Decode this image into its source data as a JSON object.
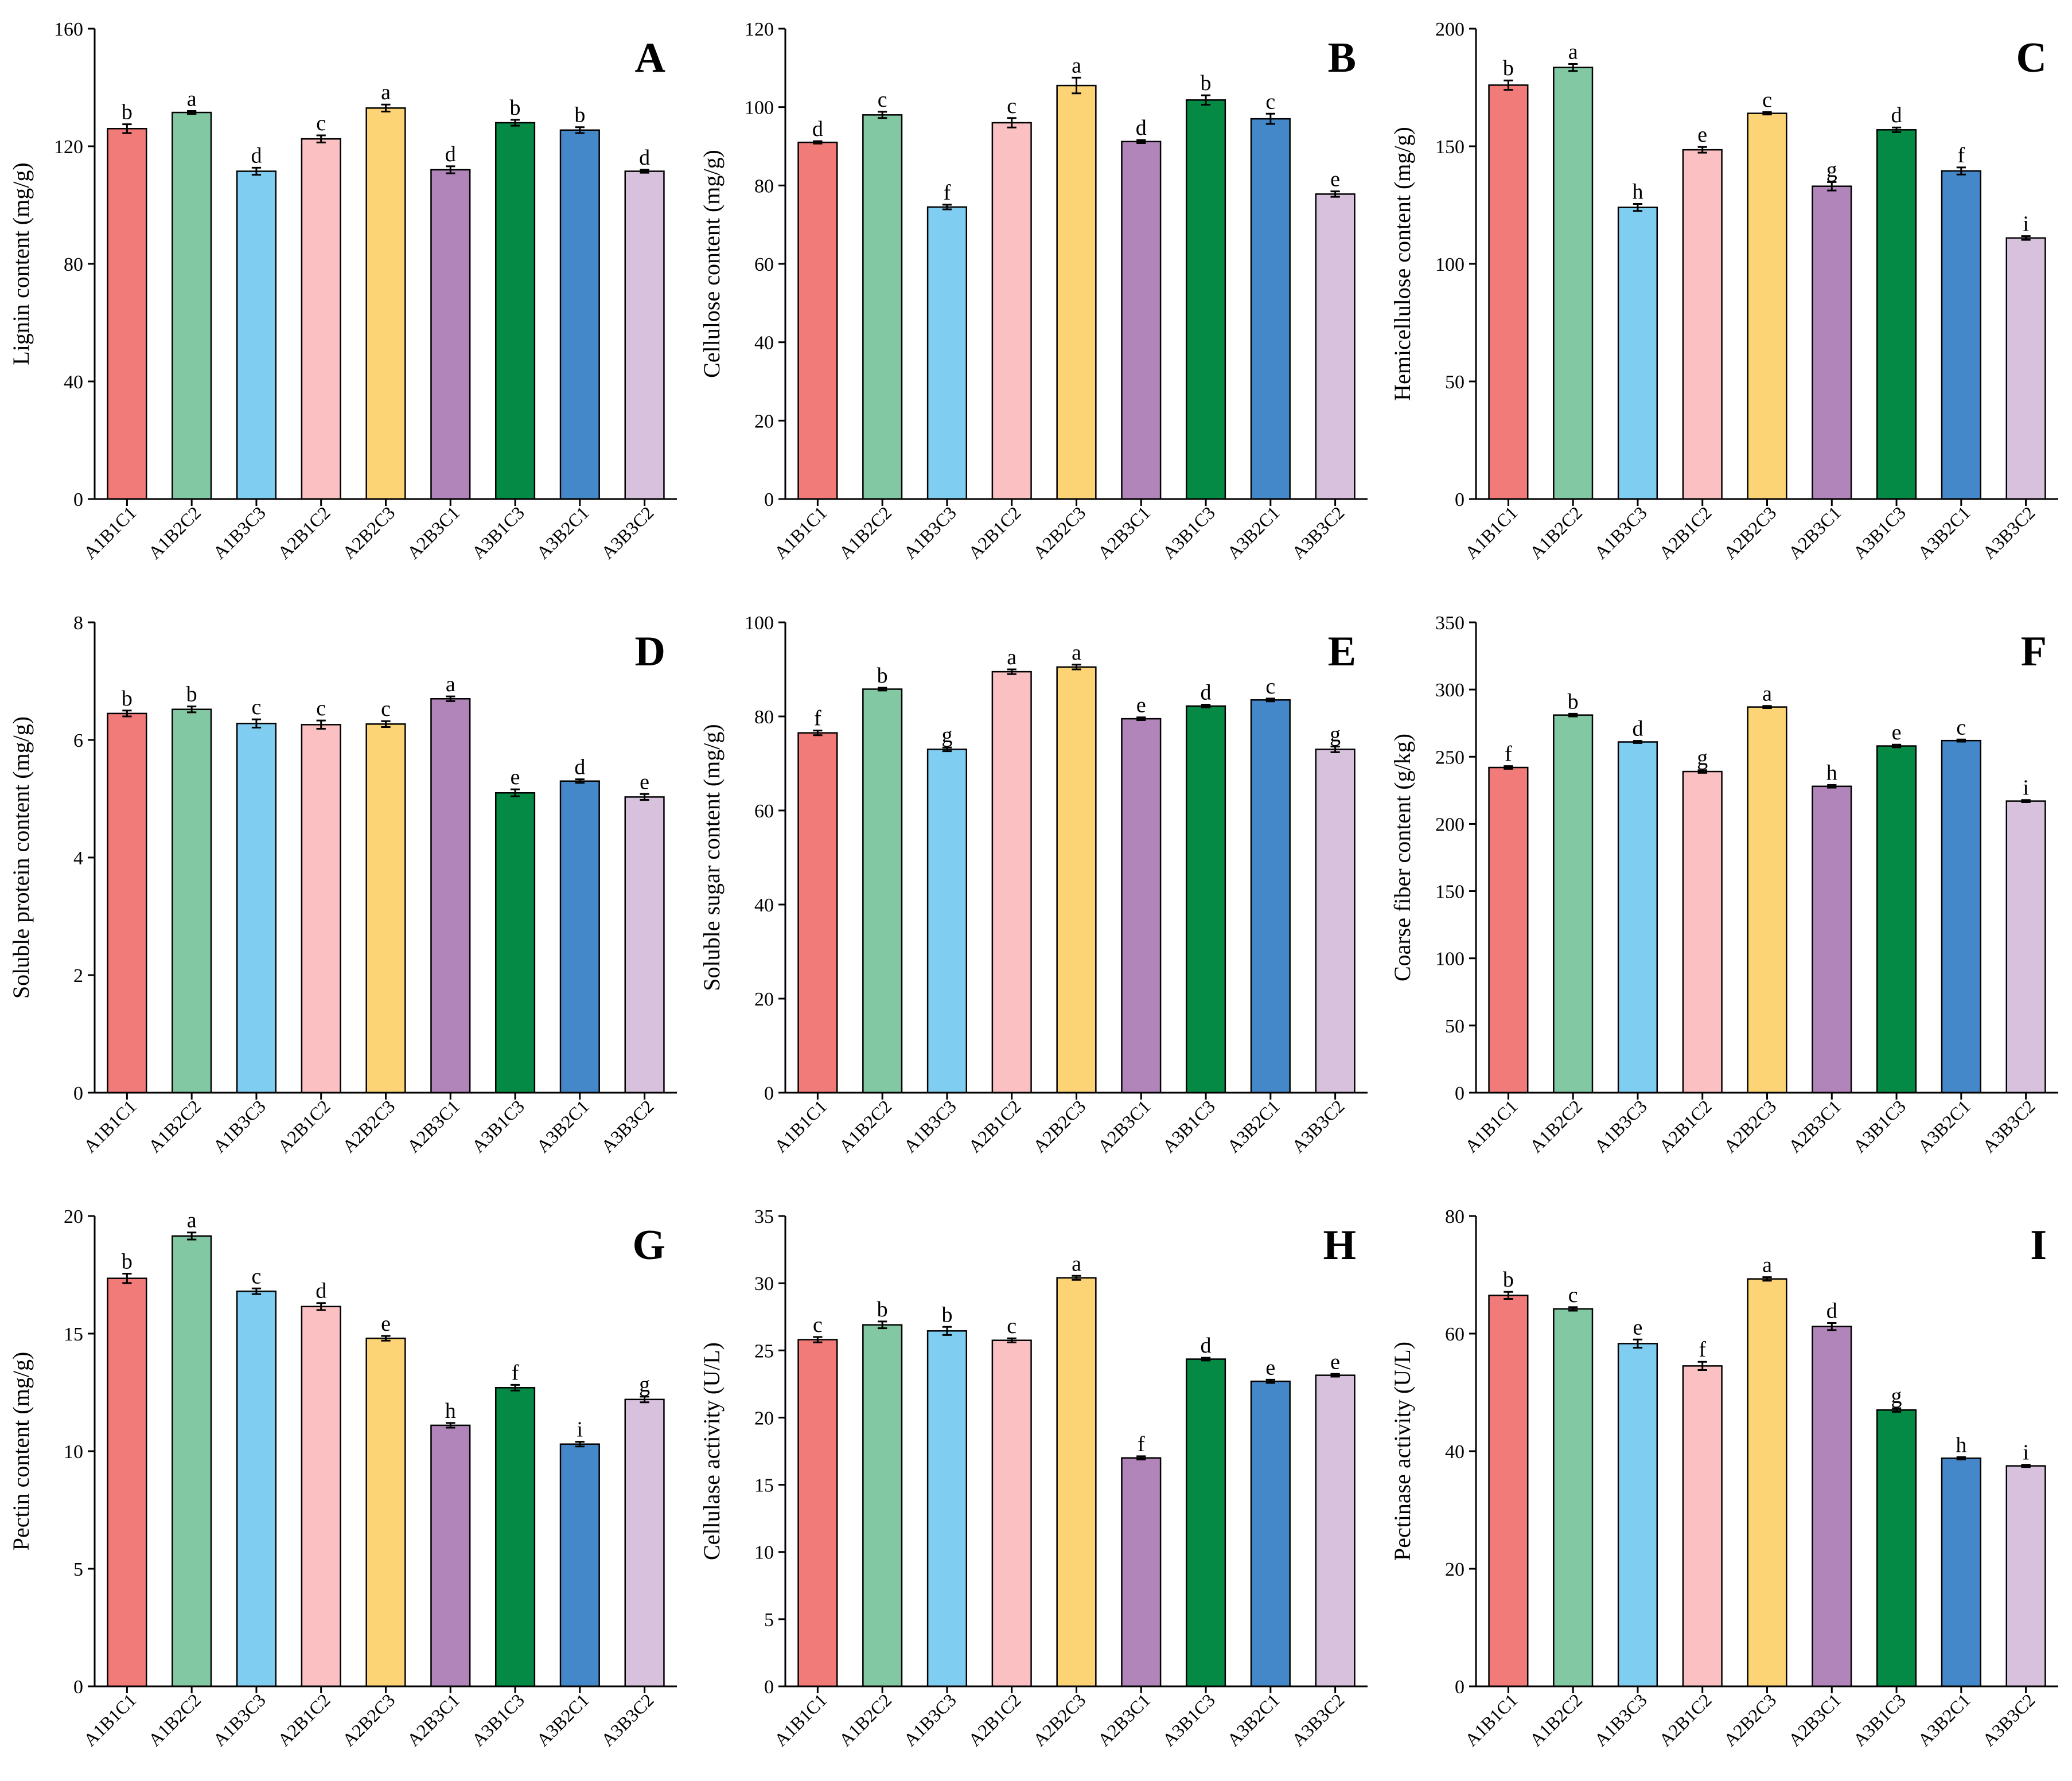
{
  "chart_data": [
    {
      "type": "bar",
      "panel": "A",
      "title": "",
      "xlabel": "",
      "ylabel": "Lignin content (mg/g)",
      "ylim": [
        0,
        160
      ],
      "yticks": [
        0,
        40,
        80,
        120,
        160
      ],
      "grid": false,
      "categories": [
        "A1B1C1",
        "A1B2C2",
        "A1B3C3",
        "A2B1C2",
        "A2B2C3",
        "A2B3C1",
        "A3B1C3",
        "A3B2C1",
        "A3B3C2"
      ],
      "values": [
        126,
        131.5,
        111.5,
        122.5,
        133,
        112,
        128,
        125.5,
        111.5
      ],
      "errors": [
        1.5,
        0.5,
        1.2,
        1.2,
        1.2,
        1.2,
        1.0,
        1.0,
        0.5
      ],
      "significance": [
        "b",
        "a",
        "d",
        "c",
        "a",
        "d",
        "b",
        "b",
        "d"
      ]
    },
    {
      "type": "bar",
      "panel": "B",
      "title": "",
      "xlabel": "",
      "ylabel": "Cellulose content (mg/g)",
      "ylim": [
        0,
        120
      ],
      "yticks": [
        0,
        20,
        40,
        60,
        80,
        100,
        120
      ],
      "grid": false,
      "categories": [
        "A1B1C1",
        "A1B2C2",
        "A1B3C3",
        "A2B1C2",
        "A2B2C3",
        "A2B3C1",
        "A3B1C3",
        "A3B2C1",
        "A3B3C2"
      ],
      "values": [
        91,
        98,
        74.5,
        96,
        105.5,
        91.2,
        101.8,
        97,
        77.8
      ],
      "errors": [
        0.3,
        0.8,
        0.6,
        1.2,
        2.0,
        0.4,
        1.2,
        1.3,
        0.7
      ],
      "significance": [
        "d",
        "c",
        "f",
        "c",
        "a",
        "d",
        "b",
        "c",
        "e"
      ]
    },
    {
      "type": "bar",
      "panel": "C",
      "title": "",
      "xlabel": "",
      "ylabel": "Hemicellulose content (mg/g)",
      "ylim": [
        0,
        200
      ],
      "yticks": [
        0,
        50,
        100,
        150,
        200
      ],
      "grid": false,
      "categories": [
        "A1B1C1",
        "A1B2C2",
        "A1B3C3",
        "A2B1C2",
        "A2B2C3",
        "A2B3C1",
        "A3B1C3",
        "A3B2C1",
        "A3B3C2"
      ],
      "values": [
        176,
        183.5,
        124,
        148.5,
        164,
        133,
        157,
        139.5,
        111
      ],
      "errors": [
        2.0,
        1.5,
        1.5,
        1.2,
        0.5,
        1.8,
        1.0,
        1.5,
        0.8
      ],
      "significance": [
        "b",
        "a",
        "h",
        "e",
        "c",
        "g",
        "d",
        "f",
        "i"
      ]
    },
    {
      "type": "bar",
      "panel": "D",
      "title": "",
      "xlabel": "",
      "ylabel": "Soluble protein content (mg/g)",
      "ylim": [
        0,
        8
      ],
      "yticks": [
        0,
        2,
        4,
        6,
        8
      ],
      "grid": false,
      "categories": [
        "A1B1C1",
        "A1B2C2",
        "A1B3C3",
        "A2B1C2",
        "A2B2C3",
        "A2B3C1",
        "A3B1C3",
        "A3B2C1",
        "A3B3C2"
      ],
      "values": [
        6.45,
        6.52,
        6.28,
        6.26,
        6.27,
        6.7,
        5.1,
        5.3,
        5.03
      ],
      "errors": [
        0.05,
        0.05,
        0.07,
        0.07,
        0.05,
        0.04,
        0.06,
        0.03,
        0.05
      ],
      "significance": [
        "b",
        "b",
        "c",
        "c",
        "c",
        "a",
        "e",
        "d",
        "e"
      ]
    },
    {
      "type": "bar",
      "panel": "E",
      "title": "",
      "xlabel": "",
      "ylabel": "Soluble sugar content (mg/g)",
      "ylim": [
        0,
        100
      ],
      "yticks": [
        0,
        20,
        40,
        60,
        80,
        100
      ],
      "grid": false,
      "categories": [
        "A1B1C1",
        "A1B2C2",
        "A1B3C3",
        "A2B1C2",
        "A2B2C3",
        "A2B3C1",
        "A3B1C3",
        "A3B2C1",
        "A3B3C2"
      ],
      "values": [
        76.5,
        85.8,
        73,
        89.5,
        90.5,
        79.5,
        82.2,
        83.5,
        73
      ],
      "errors": [
        0.5,
        0.3,
        0.4,
        0.5,
        0.5,
        0.3,
        0.3,
        0.3,
        0.6
      ],
      "significance": [
        "f",
        "b",
        "g",
        "a",
        "a",
        "e",
        "d",
        "c",
        "g"
      ]
    },
    {
      "type": "bar",
      "panel": "F",
      "title": "",
      "xlabel": "",
      "ylabel": "Coarse fiber content (g/kg)",
      "ylim": [
        0,
        350
      ],
      "yticks": [
        0,
        50,
        100,
        150,
        200,
        250,
        300,
        350
      ],
      "grid": false,
      "categories": [
        "A1B1C1",
        "A1B2C2",
        "A1B3C3",
        "A2B1C2",
        "A2B2C3",
        "A2B3C1",
        "A3B1C3",
        "A3B2C1",
        "A3B3C2"
      ],
      "values": [
        242,
        281,
        261,
        239,
        287,
        228,
        258,
        262,
        217
      ],
      "errors": [
        1.0,
        1.0,
        0.8,
        1.0,
        0.8,
        1.0,
        1.0,
        0.8,
        0.8
      ],
      "significance": [
        "f",
        "b",
        "d",
        "g",
        "a",
        "h",
        "e",
        "c",
        "i"
      ]
    },
    {
      "type": "bar",
      "panel": "G",
      "title": "",
      "xlabel": "",
      "ylabel": "Pectin content (mg/g)",
      "ylim": [
        0,
        20
      ],
      "yticks": [
        0,
        5,
        10,
        15,
        20
      ],
      "grid": false,
      "categories": [
        "A1B1C1",
        "A1B2C2",
        "A1B3C3",
        "A2B1C2",
        "A2B2C3",
        "A2B3C1",
        "A3B1C3",
        "A3B2C1",
        "A3B3C2"
      ],
      "values": [
        17.35,
        19.15,
        16.8,
        16.15,
        14.8,
        11.1,
        12.7,
        10.3,
        12.2
      ],
      "errors": [
        0.2,
        0.15,
        0.12,
        0.15,
        0.1,
        0.1,
        0.12,
        0.1,
        0.12
      ],
      "significance": [
        "b",
        "a",
        "c",
        "d",
        "e",
        "h",
        "f",
        "i",
        "g"
      ]
    },
    {
      "type": "bar",
      "panel": "H",
      "title": "",
      "xlabel": "",
      "ylabel": "Cellulase activity (U/L)",
      "ylim": [
        0,
        35
      ],
      "yticks": [
        0,
        5,
        10,
        15,
        20,
        25,
        30,
        35
      ],
      "grid": false,
      "categories": [
        "A1B1C1",
        "A1B2C2",
        "A1B3C3",
        "A2B1C2",
        "A2B2C3",
        "A2B3C1",
        "A3B1C3",
        "A3B2C1",
        "A3B3C2"
      ],
      "values": [
        25.8,
        26.9,
        26.45,
        25.75,
        30.4,
        17.0,
        24.35,
        22.7,
        23.15
      ],
      "errors": [
        0.2,
        0.25,
        0.3,
        0.15,
        0.15,
        0.12,
        0.1,
        0.12,
        0.1
      ],
      "significance": [
        "c",
        "b",
        "b",
        "c",
        "a",
        "f",
        "d",
        "e",
        "e"
      ]
    },
    {
      "type": "bar",
      "panel": "I",
      "title": "",
      "xlabel": "",
      "ylabel": "Pectinase activity (U/L)",
      "ylim": [
        0,
        80
      ],
      "yticks": [
        0,
        20,
        40,
        60,
        80
      ],
      "grid": false,
      "categories": [
        "A1B1C1",
        "A1B2C2",
        "A1B3C3",
        "A2B1C2",
        "A2B2C3",
        "A2B3C1",
        "A3B1C3",
        "A3B2C1",
        "A3B3C2"
      ],
      "values": [
        66.5,
        64.2,
        58.3,
        54.5,
        69.3,
        61.2,
        47,
        38.8,
        37.5
      ],
      "errors": [
        0.6,
        0.3,
        0.7,
        0.7,
        0.3,
        0.6,
        0.3,
        0.2,
        0.2
      ],
      "significance": [
        "b",
        "c",
        "e",
        "f",
        "a",
        "d",
        "g",
        "h",
        "i"
      ]
    }
  ],
  "bar_colors": [
    "#f07b78",
    "#82c8a2",
    "#80cdf2",
    "#fbc0c2",
    "#fdd475",
    "#b184ba",
    "#048a45",
    "#4588c9",
    "#d7c1dd"
  ]
}
